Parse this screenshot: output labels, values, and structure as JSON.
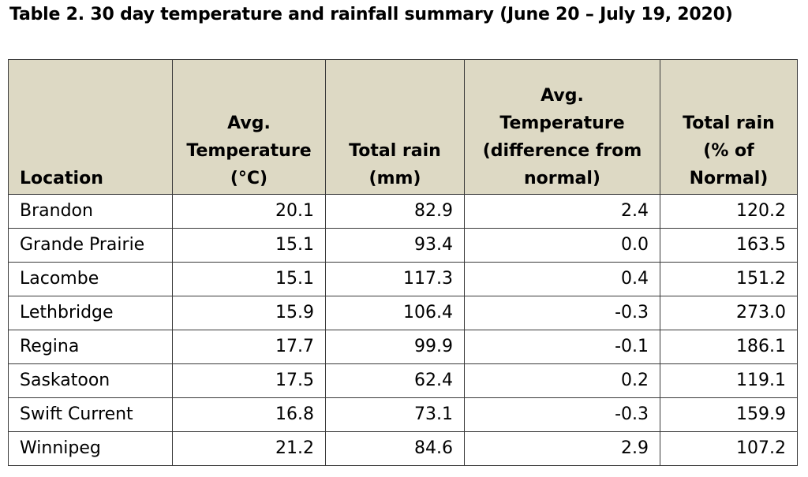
{
  "title": "Table 2. 30 day temperature and rainfall summary (June 20 – July 19, 2020)",
  "headers": [
    {
      "lines": [
        "Location"
      ]
    },
    {
      "lines": [
        "Avg.",
        "Temperature",
        "(°C)"
      ]
    },
    {
      "lines": [
        "Total rain",
        "(mm)"
      ]
    },
    {
      "lines": [
        "Avg. Temperature",
        "(difference from",
        "normal)"
      ]
    },
    {
      "lines": [
        "Total rain",
        "(% of",
        "Normal)"
      ]
    }
  ],
  "rows": [
    [
      "Brandon",
      "20.1",
      "82.9",
      "2.4",
      "120.2"
    ],
    [
      "Grande Prairie",
      "15.1",
      "93.4",
      "0.0",
      "163.5"
    ],
    [
      "Lacombe",
      "15.1",
      "117.3",
      "0.4",
      "151.2"
    ],
    [
      "Lethbridge",
      "15.9",
      "106.4",
      "-0.3",
      "273.0"
    ],
    [
      "Regina",
      "17.7",
      "99.9",
      "-0.1",
      "186.1"
    ],
    [
      "Saskatoon",
      "17.5",
      "62.4",
      "0.2",
      "119.1"
    ],
    [
      "Swift Current",
      "16.8",
      "73.1",
      "-0.3",
      "159.9"
    ],
    [
      "Winnipeg",
      "21.2",
      "84.6",
      "2.9",
      "107.2"
    ]
  ],
  "colors": {
    "header_background": "#ddd9c4",
    "border": "#3a3a3a"
  }
}
